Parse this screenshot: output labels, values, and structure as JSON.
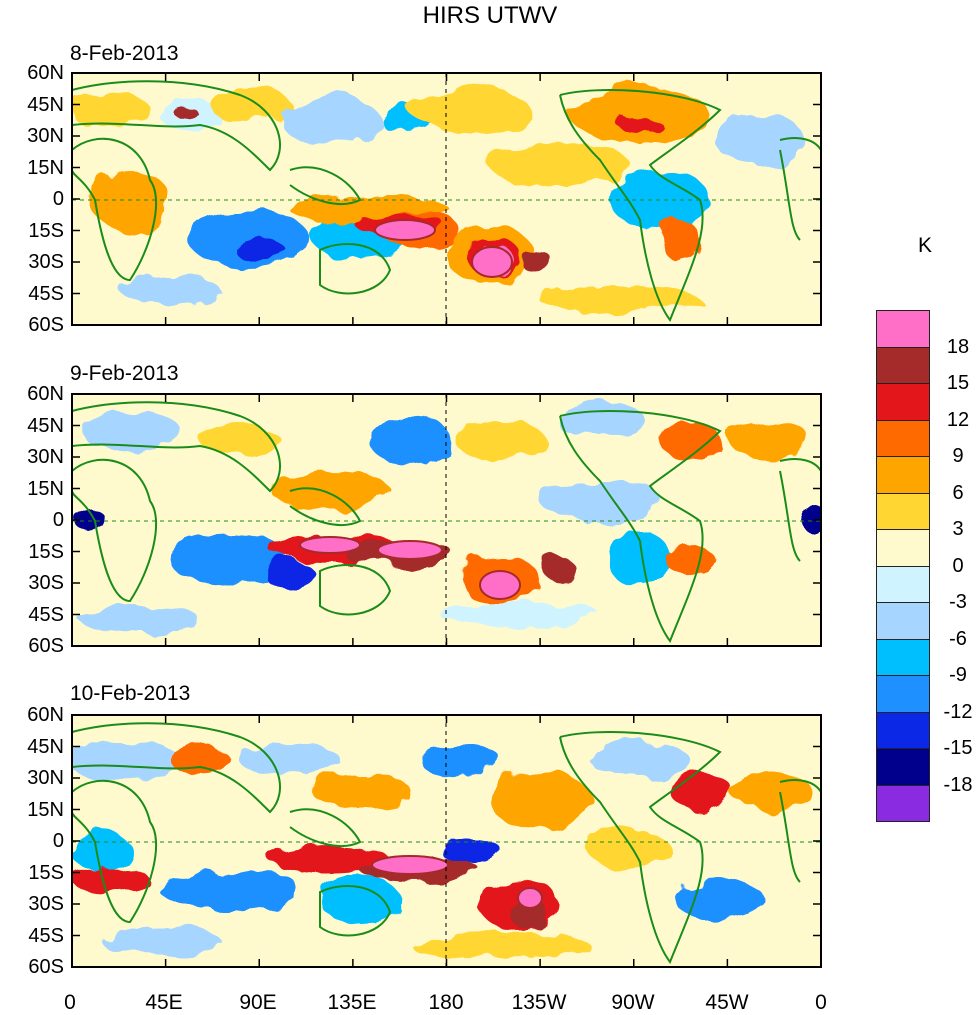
{
  "title": "HIRS UTWV",
  "panels": [
    {
      "date": "8-Feb-2013"
    },
    {
      "date": "9-Feb-2013"
    },
    {
      "date": "10-Feb-2013"
    }
  ],
  "lat_labels": [
    "60N",
    "45N",
    "30N",
    "15N",
    "0",
    "15S",
    "30S",
    "45S",
    "60S"
  ],
  "lon_labels": [
    "0",
    "45E",
    "90E",
    "135E",
    "180",
    "135W",
    "90W",
    "45W",
    "0"
  ],
  "colorbar": {
    "unit": "K",
    "levels": [
      "18",
      "15",
      "12",
      "9",
      "6",
      "3",
      "0",
      "-3",
      "-6",
      "-9",
      "-12",
      "-15",
      "-18"
    ],
    "colors": [
      "#ff6ec7",
      "#a52a2a",
      "#e3171b",
      "#ff6a00",
      "#ffa500",
      "#ffd632",
      "#fffacd",
      "#d0f4ff",
      "#a6d5ff",
      "#00bfff",
      "#1e90ff",
      "#0a28e6",
      "#00008c",
      "#8a2be2"
    ]
  },
  "colors": {
    "coastline": "#1a8c1a",
    "frame": "#000000",
    "guide": "#1a8c1a"
  }
}
